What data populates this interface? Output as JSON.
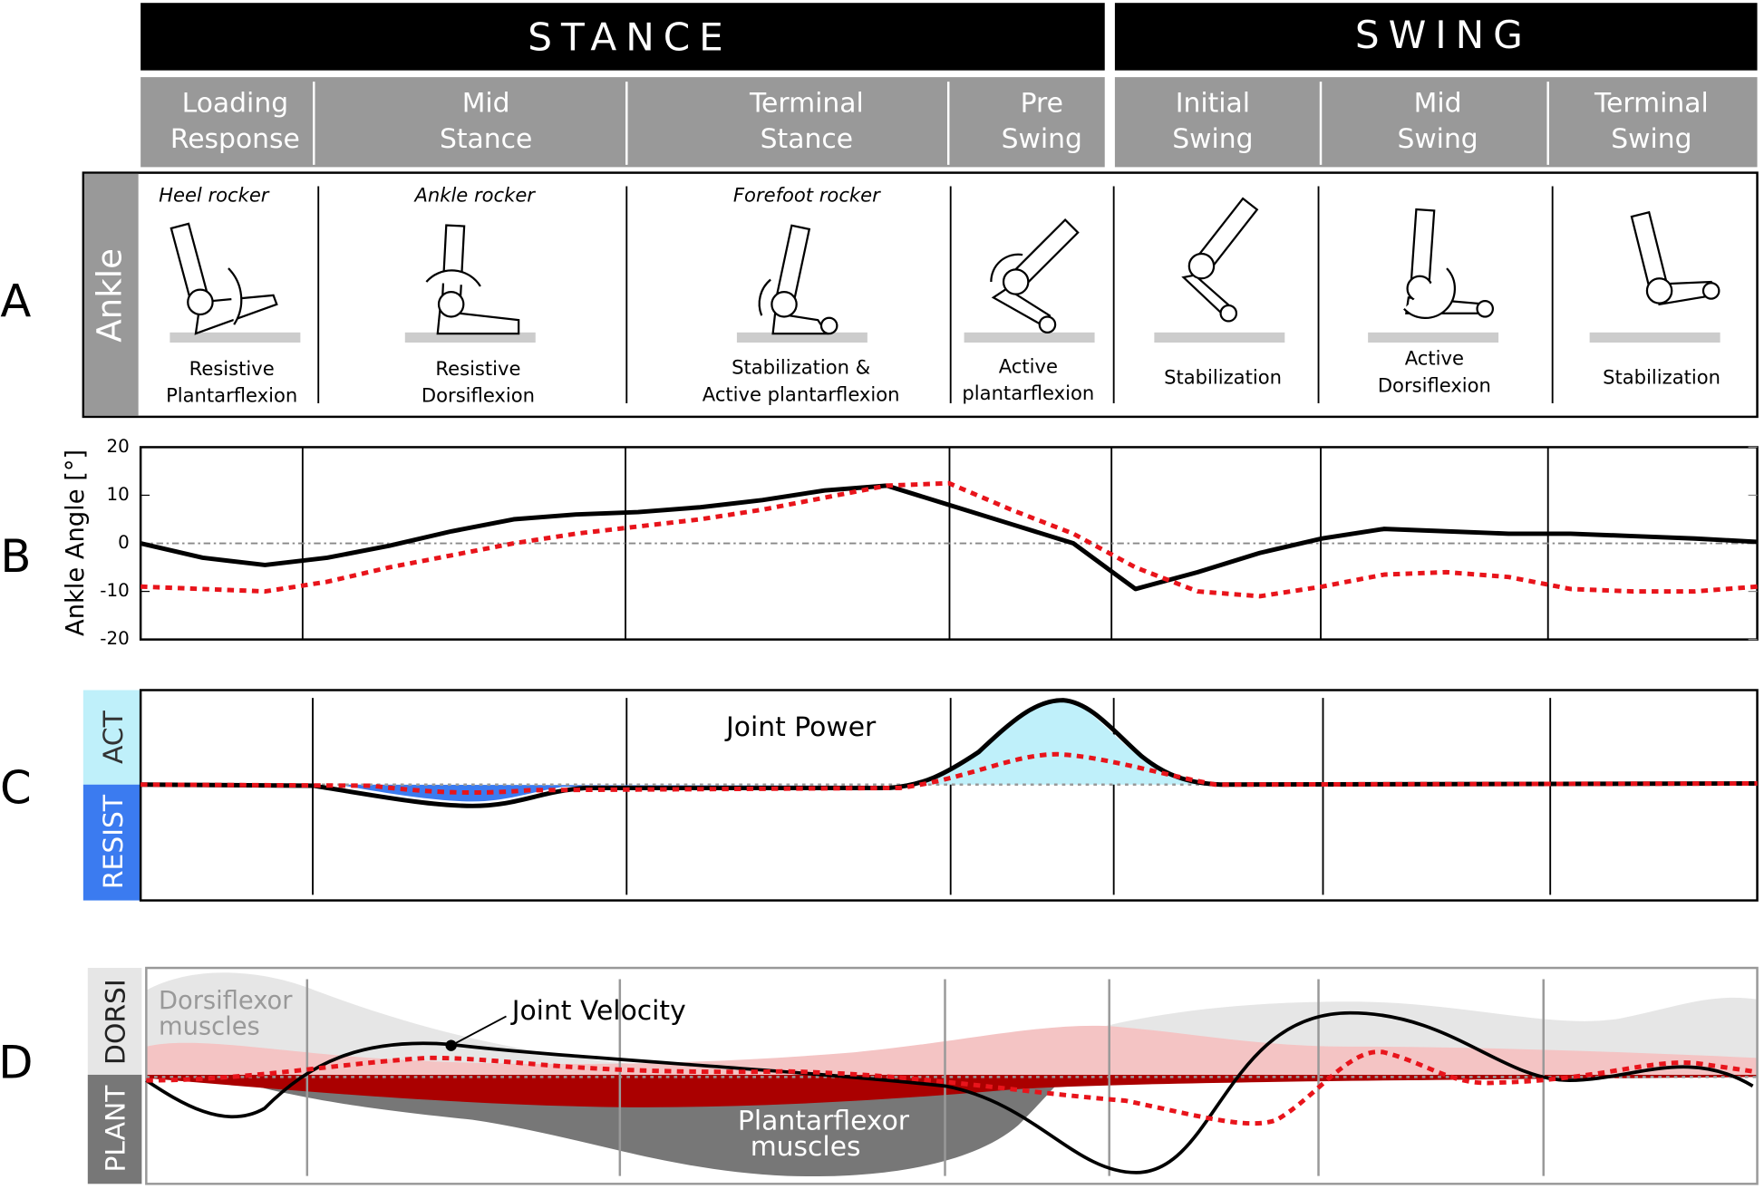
{
  "header": {
    "phases": [
      "STANCE",
      "SWING"
    ],
    "subphases": [
      [
        "Loading",
        "Response"
      ],
      [
        "Mid",
        "Stance"
      ],
      [
        "Terminal",
        "Stance"
      ],
      [
        "Pre",
        "Swing"
      ],
      [
        "Initial",
        "Swing"
      ],
      [
        "Mid",
        "Swing"
      ],
      [
        "Terminal",
        "Swing"
      ]
    ]
  },
  "panel_letters": [
    "A",
    "B",
    "C",
    "D"
  ],
  "ankle_panel": {
    "label": "Ankle",
    "rockers": [
      "Heel rocker",
      "Ankle rocker",
      "Forefoot rocker"
    ],
    "functions": [
      [
        "Resistive",
        "Plantarflexion"
      ],
      [
        "Resistive",
        "Dorsiflexion"
      ],
      [
        "Stabilization &",
        "Active plantarflexion"
      ],
      [
        "Active",
        "plantarflexion"
      ],
      [
        "Stabilization"
      ],
      [
        "Active",
        "Dorsiflexion"
      ],
      [
        "Stabilization"
      ]
    ]
  },
  "chart_data": {
    "type": "line",
    "y_label": "Ankle Angle [°]",
    "categories": [
      null,
      null,
      null,
      null,
      null,
      null,
      null,
      null,
      null,
      null,
      null,
      null,
      null,
      null,
      null,
      null,
      null,
      null,
      null,
      null,
      null,
      null,
      null,
      null,
      null,
      null,
      null
    ],
    "ylim": [
      -20,
      20
    ],
    "yticks": [
      20,
      10,
      0,
      -10,
      -20
    ],
    "series": [
      {
        "color": "#000000",
        "values": [
          0,
          -3,
          -4.5,
          -3,
          -0.5,
          2.5,
          5,
          6,
          6.5,
          7.5,
          9,
          11,
          12,
          8,
          4,
          0,
          -9.5,
          -6,
          -2,
          1,
          3,
          2.5,
          2,
          2,
          1.5,
          1,
          0.3
        ]
      },
      {
        "color": "#e8141b",
        "values": [
          -9,
          -9.5,
          -10,
          -8,
          -5,
          -2.5,
          0,
          2,
          3.5,
          5,
          7,
          9.5,
          12,
          12.5,
          7,
          2,
          -5,
          -10,
          -11,
          -9,
          -6.5,
          -6,
          -7,
          -9.5,
          -10,
          -10,
          -9
        ]
      }
    ]
  },
  "power_panel": {
    "act": "ACT",
    "resist": "RESIST",
    "title": "Joint Power"
  },
  "velocity_panel": {
    "dorsi": "DORSI",
    "plant": "PLANT",
    "dorsi_muscles": [
      "Dorsiflexor",
      "muscles"
    ],
    "plant_muscles": [
      "Plantarflexor",
      "muscles"
    ],
    "velocity": "Joint Velocity"
  }
}
